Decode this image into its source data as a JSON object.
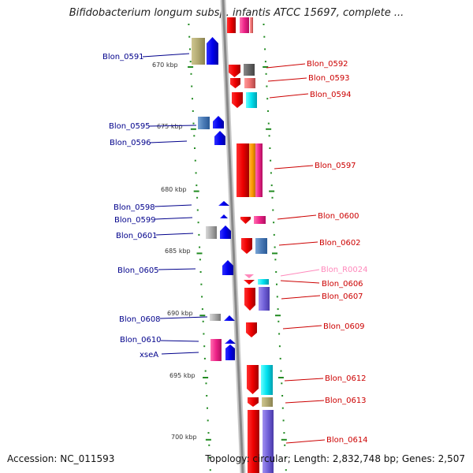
{
  "title": "Bifidobacterium longum subsp. infantis ATCC 15697, complete ...",
  "footer": {
    "accession": "Accession: NC_011593",
    "topology": "Topology: circular; Length: 2,832,748 bp; Genes: 2,507"
  },
  "colors": {
    "left_strand_labels": "#00008b",
    "right_strand_labels": "#cc0000",
    "rna_label": "#ff88bb",
    "backbone": "#999999",
    "tick_marks": "#228b22"
  },
  "scale_labels": [
    "670 kbp",
    "675 kbp",
    "680 kbp",
    "685 kbp",
    "690 kbp",
    "695 kbp",
    "700 kbp"
  ],
  "genes_left": [
    "Blon_0591",
    "Blon_0595",
    "Blon_0596",
    "Blon_0598",
    "Blon_0599",
    "Blon_0601",
    "Blon_0605",
    "Blon_0608",
    "Blon_0610",
    "xseA"
  ],
  "genes_right": [
    "Blon_0592",
    "Blon_0593",
    "Blon_0594",
    "Blon_0597",
    "Blon_0600",
    "Blon_0602",
    "Blon_R0024",
    "Blon_0606",
    "Blon_0607",
    "Blon_0609",
    "Blon_0612",
    "Blon_0613",
    "Blon_0614"
  ]
}
